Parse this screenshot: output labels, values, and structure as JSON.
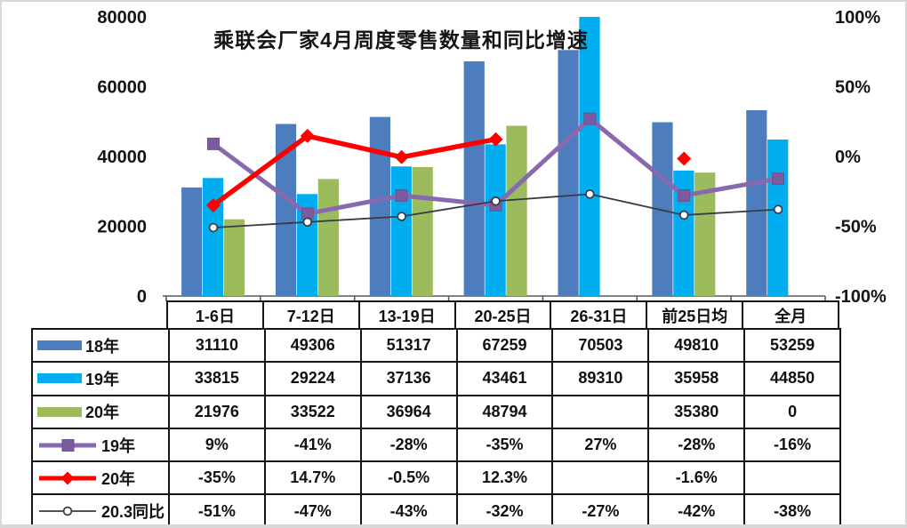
{
  "title": "乘联会厂家4月周度零售数量和同比增速",
  "colors": {
    "bar_18": "#4E7DBE",
    "bar_19": "#00AEEF",
    "bar_20": "#9CBB5C",
    "line_19": "#8868AE",
    "line_19_marker": "#7A5B9E",
    "line_20": "#FE0000",
    "line_203": "#3A3A46",
    "table_border": "#141414",
    "axis_line": "#595959"
  },
  "chart_data": {
    "type": "bar",
    "subtype": "bar+line combo with data table",
    "title": "乘联会厂家4月周度零售数量和同比增速",
    "categories": [
      "1-6日",
      "7-12日",
      "13-19日",
      "20-25日",
      "26-31日",
      "前25日均",
      "全月"
    ],
    "series": [
      {
        "name": "18年",
        "kind": "bar",
        "color": "#4E7DBE",
        "axis": "left",
        "values": [
          31110,
          49306,
          51317,
          67259,
          70503,
          49810,
          53259
        ]
      },
      {
        "name": "19年",
        "kind": "bar",
        "color": "#00AEEF",
        "axis": "left",
        "values": [
          33815,
          29224,
          37136,
          43461,
          89310,
          35958,
          44850
        ]
      },
      {
        "name": "20年",
        "kind": "bar",
        "color": "#9CBB5C",
        "axis": "left",
        "values": [
          21976,
          33522,
          36964,
          48794,
          null,
          35380,
          0
        ]
      },
      {
        "name": "19年",
        "kind": "line",
        "marker": "square",
        "color": "#8868AE",
        "marker_color": "#7A5B9E",
        "width": 5,
        "axis": "right",
        "values": [
          9,
          -41,
          -28,
          -35,
          27,
          -28,
          -16
        ]
      },
      {
        "name": "20年",
        "kind": "line",
        "marker": "diamond",
        "color": "#FE0000",
        "marker_color": "#FE0000",
        "width": 5.5,
        "axis": "right",
        "values": [
          -35,
          14.7,
          -0.5,
          12.3,
          null,
          -1.6,
          null
        ]
      },
      {
        "name": "20.3同比",
        "kind": "line",
        "marker": "circle",
        "color": "#3A3A46",
        "marker_color": "#3A3A46",
        "width": 1.8,
        "axis": "right",
        "values": [
          -51,
          -47,
          -43,
          -32,
          -27,
          -42,
          -38
        ]
      }
    ],
    "left_axis": {
      "min": 0,
      "max": 80000,
      "ticks": [
        "80000",
        "60000",
        "40000",
        "20000",
        "0"
      ]
    },
    "right_axis": {
      "min": -100,
      "max": 100,
      "ticks": [
        "100%",
        "50%",
        "0%",
        "-50%",
        "-100%"
      ]
    },
    "grid": false,
    "legend_position": "table-left-column"
  },
  "table": {
    "headers": [
      "1-6日",
      "7-12日",
      "13-19日",
      "20-25日",
      "26-31日",
      "前25日均",
      "全月"
    ],
    "rows": [
      {
        "legend": "18年",
        "swatch": {
          "kind": "bar",
          "color": "#4E7DBE"
        },
        "cells": [
          "31110",
          "49306",
          "51317",
          "67259",
          "70503",
          "49810",
          "53259"
        ]
      },
      {
        "legend": "19年",
        "swatch": {
          "kind": "bar",
          "color": "#00AEEF"
        },
        "cells": [
          "33815",
          "29224",
          "37136",
          "43461",
          "89310",
          "35958",
          "44850"
        ]
      },
      {
        "legend": "20年",
        "swatch": {
          "kind": "bar",
          "color": "#9CBB5C"
        },
        "cells": [
          "21976",
          "33522",
          "36964",
          "48794",
          "",
          "35380",
          "0"
        ]
      },
      {
        "legend": "19年",
        "swatch": {
          "kind": "line",
          "marker": "square",
          "color": "#8868AE",
          "marker_color": "#7A5B9E",
          "width": 5
        },
        "cells": [
          "9%",
          "-41%",
          "-28%",
          "-35%",
          "27%",
          "-28%",
          "-16%"
        ]
      },
      {
        "legend": "20年",
        "swatch": {
          "kind": "line",
          "marker": "diamond",
          "color": "#FE0000",
          "marker_color": "#FE0000",
          "width": 5
        },
        "cells": [
          "-35%",
          "14.7%",
          "-0.5%",
          "12.3%",
          "",
          "-1.6%",
          ""
        ]
      },
      {
        "legend": "20.3同比",
        "swatch": {
          "kind": "line",
          "marker": "circle",
          "color": "#3A3A46",
          "marker_color": "#3A3A46",
          "width": 1.8
        },
        "cells": [
          "-51%",
          "-47%",
          "-43%",
          "-32%",
          "-27%",
          "-42%",
          "-38%"
        ]
      }
    ]
  }
}
